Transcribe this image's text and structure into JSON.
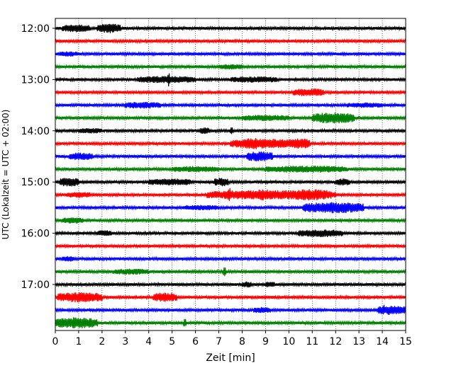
{
  "chart_data": {
    "type": "line",
    "title": "",
    "xlabel": "Zeit  [min]",
    "ylabel": "UTC (Lokalzeit = UTC + 02:00)",
    "xlim": [
      0,
      15
    ],
    "x_ticks": [
      "0",
      "1",
      "2",
      "3",
      "4",
      "5",
      "6",
      "7",
      "8",
      "9",
      "10",
      "11",
      "12",
      "13",
      "14",
      "15"
    ],
    "y_ticks": [
      "12:00",
      "13:00",
      "14:00",
      "15:00",
      "16:00",
      "17:00"
    ],
    "vertical_grid": "dotted",
    "traces_per_hour": 4,
    "trace_minutes": 15,
    "trace_colors": [
      "#000000",
      "#ff0000",
      "#0000ff",
      "#008000"
    ],
    "traces": [
      {
        "start": "12:00",
        "bursts": [
          [
            0.3,
            1.5,
            0.6
          ],
          [
            1.8,
            2.8,
            0.8
          ]
        ]
      },
      {
        "start": "12:15",
        "bursts": []
      },
      {
        "start": "12:30",
        "bursts": [
          [
            0.2,
            1.0,
            0.3
          ]
        ]
      },
      {
        "start": "12:45",
        "bursts": [
          [
            7.0,
            8.0,
            0.3
          ]
        ]
      },
      {
        "start": "13:00",
        "bursts": [
          [
            3.5,
            6.0,
            0.5
          ],
          [
            4.8,
            4.9,
            1.5
          ],
          [
            7.5,
            9.5,
            0.4
          ]
        ]
      },
      {
        "start": "13:15",
        "bursts": [
          [
            10.2,
            11.5,
            0.6
          ]
        ]
      },
      {
        "start": "13:30",
        "bursts": [
          [
            3.0,
            4.5,
            0.5
          ],
          [
            12.5,
            14.0,
            0.3
          ]
        ]
      },
      {
        "start": "13:45",
        "bursts": [
          [
            11.0,
            12.8,
            1.0
          ],
          [
            8.0,
            10.0,
            0.4
          ]
        ]
      },
      {
        "start": "14:00",
        "bursts": [
          [
            1.0,
            2.0,
            0.3
          ],
          [
            6.2,
            6.6,
            0.5
          ],
          [
            7.5,
            7.6,
            0.6
          ]
        ]
      },
      {
        "start": "14:15",
        "bursts": [
          [
            7.5,
            10.5,
            0.8
          ],
          [
            8.0,
            9.0,
            1.0
          ],
          [
            10.0,
            10.9,
            0.9
          ]
        ]
      },
      {
        "start": "14:30",
        "bursts": [
          [
            0.6,
            1.6,
            0.6
          ],
          [
            8.2,
            9.3,
            0.9
          ]
        ]
      },
      {
        "start": "14:45",
        "bursts": [
          [
            5.0,
            7.0,
            0.4
          ],
          [
            9.0,
            12.5,
            0.5
          ]
        ]
      },
      {
        "start": "15:00",
        "bursts": [
          [
            0.2,
            1.0,
            0.8
          ],
          [
            4.0,
            5.8,
            0.5
          ],
          [
            6.8,
            7.4,
            0.7
          ],
          [
            12.0,
            12.6,
            0.5
          ]
        ]
      },
      {
        "start": "15:15",
        "bursts": [
          [
            0.5,
            1.5,
            0.4
          ],
          [
            6.5,
            12.0,
            0.8
          ],
          [
            8.5,
            9.3,
            1.0
          ],
          [
            10.0,
            11.8,
            1.0
          ],
          [
            7.4,
            7.5,
            1.5
          ]
        ]
      },
      {
        "start": "15:30",
        "bursts": [
          [
            10.6,
            13.2,
            1.0
          ],
          [
            5.5,
            7.0,
            0.3
          ]
        ]
      },
      {
        "start": "15:45",
        "bursts": [
          [
            0.3,
            1.2,
            0.4
          ]
        ]
      },
      {
        "start": "16:00",
        "bursts": [
          [
            1.8,
            2.4,
            0.4
          ],
          [
            10.4,
            12.3,
            0.6
          ]
        ]
      },
      {
        "start": "16:15",
        "bursts": []
      },
      {
        "start": "16:30",
        "bursts": [
          [
            0.3,
            0.8,
            0.3
          ]
        ]
      },
      {
        "start": "16:45",
        "bursts": [
          [
            2.5,
            4.0,
            0.4
          ],
          [
            7.2,
            7.3,
            0.9
          ]
        ]
      },
      {
        "start": "17:00",
        "bursts": [
          [
            8.0,
            8.4,
            0.4
          ],
          [
            9.0,
            9.4,
            0.4
          ]
        ]
      },
      {
        "start": "17:15",
        "bursts": [
          [
            0.1,
            2.0,
            0.9
          ],
          [
            4.2,
            5.2,
            0.8
          ]
        ]
      },
      {
        "start": "17:30",
        "bursts": [
          [
            8.5,
            9.2,
            0.4
          ],
          [
            13.8,
            15.0,
            0.8
          ],
          [
            14.0,
            14.1,
            1.2
          ]
        ]
      },
      {
        "start": "17:45",
        "bursts": [
          [
            0.0,
            1.8,
            1.0
          ],
          [
            5.5,
            5.6,
            0.9
          ]
        ]
      }
    ]
  }
}
